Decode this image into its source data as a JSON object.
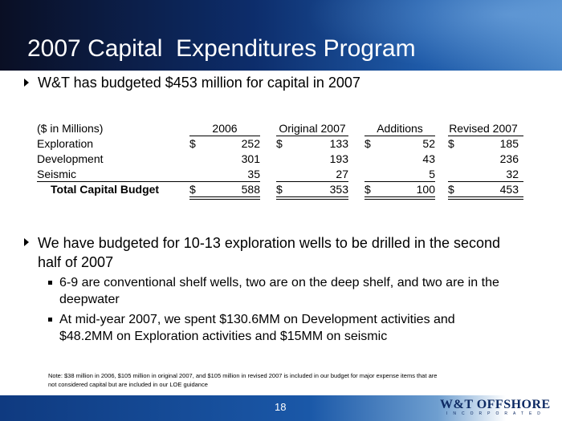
{
  "slide": {
    "title": "2007 Capital  Expenditures Program",
    "page_number": "18"
  },
  "bullets": {
    "b1": "W&T has budgeted $453 million for capital in 2007",
    "b2_line1": "We have budgeted for 10-13 exploration wells to be drilled in the second",
    "b2_line2": "half of 2007",
    "s1_line1": "6-9 are conventional shelf wells, two are on the deep shelf, and two are in the",
    "s1_line2": "deepwater",
    "s2_line1": "At mid-year 2007, we spent $130.6MM on Development activities and",
    "s2_line2": "$48.2MM on Exploration activities and $15MM on seismic"
  },
  "table": {
    "unit_label": "($ in Millions)",
    "headers": [
      "2006",
      "Original 2007",
      "Additions",
      "Revised 2007"
    ],
    "rows": [
      {
        "label": "Exploration",
        "d1": "$",
        "v1": "252",
        "d2": "$",
        "v2": "133",
        "d3": "$",
        "v3": "52",
        "d4": "$",
        "v4": "185"
      },
      {
        "label": "Development",
        "d1": "",
        "v1": "301",
        "d2": "",
        "v2": "193",
        "d3": "",
        "v3": "43",
        "d4": "",
        "v4": "236"
      },
      {
        "label": "Seismic",
        "d1": "",
        "v1": "35",
        "d2": "",
        "v2": "27",
        "d3": "",
        "v3": "5",
        "d4": "",
        "v4": "32"
      }
    ],
    "total": {
      "label": "Total Capital Budget",
      "d1": "$",
      "v1": "588",
      "d2": "$",
      "v2": "353",
      "d3": "$",
      "v3": "100",
      "d4": "$",
      "v4": "453"
    }
  },
  "note": {
    "line1": "Note:  $38 million in 2006,  $105 million in original 2007, and $105 million in revised 2007 is included in our budget for major expense items that are",
    "line2": "not considered capital but are included in our LOE guidance"
  },
  "logo": {
    "name": "W&T OFFSHORE",
    "sub": "INCORPORATED"
  }
}
